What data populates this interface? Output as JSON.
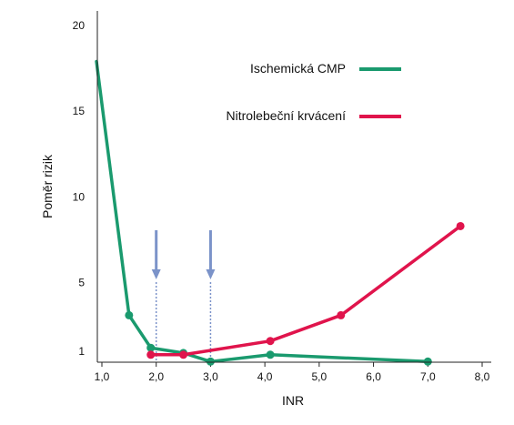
{
  "chart_data": {
    "type": "line",
    "xlabel": "INR",
    "ylabel": "Poměr rizik",
    "xlim": [
      0.9,
      8.0
    ],
    "ylim": [
      0.5,
      20
    ],
    "x_ticks": [
      {
        "value": 1.0,
        "label": "1,0"
      },
      {
        "value": 2.0,
        "label": "2,0"
      },
      {
        "value": 3.0,
        "label": "3,0"
      },
      {
        "value": 4.0,
        "label": "4,0"
      },
      {
        "value": 5.0,
        "label": "5,0"
      },
      {
        "value": 6.0,
        "label": "6,0"
      },
      {
        "value": 7.0,
        "label": "7,0"
      },
      {
        "value": 8.0,
        "label": "8,0"
      }
    ],
    "y_ticks": [
      {
        "value": 1,
        "label": "1"
      },
      {
        "value": 5,
        "label": "5"
      },
      {
        "value": 10,
        "label": "10"
      },
      {
        "value": 15,
        "label": "15"
      },
      {
        "value": 20,
        "label": "20"
      }
    ],
    "legend_position": "top-center",
    "series": [
      {
        "name": "Ischemická CMP",
        "color": "#1a9a6e",
        "x": [
          0.9,
          1.5,
          1.9,
          2.5,
          3.0,
          4.1,
          7.0
        ],
        "y": [
          17.9,
          3.1,
          1.2,
          0.9,
          0.4,
          0.8,
          0.4
        ],
        "markers": [
          false,
          true,
          true,
          true,
          true,
          true,
          true
        ]
      },
      {
        "name": "Nitrolebeční krvácení",
        "color": "#e0144c",
        "x": [
          1.9,
          2.5,
          4.1,
          5.4,
          7.6
        ],
        "y": [
          0.8,
          0.8,
          1.6,
          3.1,
          8.3
        ],
        "markers": [
          true,
          true,
          true,
          true,
          true
        ]
      }
    ],
    "annotations": [
      {
        "type": "arrow",
        "x": 2.0,
        "color": "#7b93c9"
      },
      {
        "type": "arrow",
        "x": 3.0,
        "color": "#7b93c9"
      }
    ],
    "grid": false
  }
}
